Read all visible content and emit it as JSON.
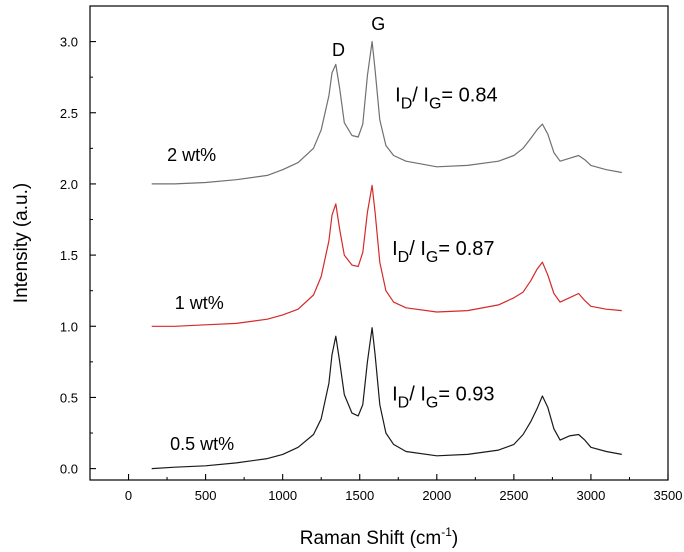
{
  "chart_data": {
    "type": "line",
    "title": "",
    "xlabel": "Raman Shift (cm",
    "xlabel_sup": "-1",
    "xlabel_close": ")",
    "ylabel": "Intensity (a.u.)",
    "xlim": [
      -250,
      3500
    ],
    "ylim": [
      -0.08,
      3.25
    ],
    "x_ticks": [
      0,
      500,
      1000,
      1500,
      2000,
      2500,
      3000,
      3500
    ],
    "x_tick_labels": [
      "0",
      "500",
      "1000",
      "1500",
      "2000",
      "2500",
      "3000",
      "3500"
    ],
    "y_ticks": [
      0.0,
      0.5,
      1.0,
      1.5,
      2.0,
      2.5,
      3.0
    ],
    "y_tick_labels": [
      "0.0",
      "0.5",
      "1.0",
      "1.5",
      "2.0",
      "2.5",
      "3.0"
    ],
    "grid": false,
    "series": [
      {
        "name": "0.5 wt%",
        "color": "#1a1a1a",
        "x": [
          150,
          300,
          500,
          700,
          900,
          1000,
          1100,
          1200,
          1250,
          1300,
          1320,
          1345,
          1370,
          1400,
          1450,
          1490,
          1520,
          1550,
          1580,
          1600,
          1630,
          1670,
          1720,
          1800,
          2000,
          2200,
          2400,
          2500,
          2560,
          2610,
          2650,
          2685,
          2720,
          2760,
          2800,
          2860,
          2920,
          2960,
          3000,
          3100,
          3200
        ],
        "y": [
          0.0,
          0.01,
          0.02,
          0.04,
          0.07,
          0.1,
          0.15,
          0.24,
          0.35,
          0.6,
          0.8,
          0.93,
          0.75,
          0.52,
          0.39,
          0.37,
          0.45,
          0.75,
          0.99,
          0.8,
          0.45,
          0.25,
          0.17,
          0.12,
          0.09,
          0.1,
          0.13,
          0.17,
          0.24,
          0.33,
          0.42,
          0.51,
          0.43,
          0.28,
          0.2,
          0.23,
          0.24,
          0.2,
          0.15,
          0.12,
          0.1
        ]
      },
      {
        "name": "1 wt%",
        "color": "#d42a2a",
        "x": [
          150,
          300,
          500,
          700,
          900,
          1000,
          1100,
          1200,
          1250,
          1300,
          1320,
          1345,
          1370,
          1400,
          1450,
          1490,
          1520,
          1550,
          1580,
          1600,
          1630,
          1670,
          1720,
          1800,
          2000,
          2200,
          2400,
          2500,
          2560,
          2610,
          2650,
          2685,
          2720,
          2760,
          2800,
          2860,
          2920,
          2960,
          3000,
          3100,
          3200
        ],
        "y": [
          1.0,
          1.0,
          1.01,
          1.02,
          1.05,
          1.08,
          1.12,
          1.22,
          1.35,
          1.6,
          1.78,
          1.86,
          1.68,
          1.5,
          1.43,
          1.42,
          1.52,
          1.8,
          1.99,
          1.8,
          1.45,
          1.25,
          1.17,
          1.13,
          1.1,
          1.11,
          1.15,
          1.2,
          1.24,
          1.32,
          1.4,
          1.45,
          1.36,
          1.23,
          1.17,
          1.2,
          1.23,
          1.18,
          1.14,
          1.12,
          1.11
        ]
      },
      {
        "name": "2 wt%",
        "color": "#707070",
        "x": [
          150,
          300,
          500,
          700,
          900,
          1000,
          1100,
          1200,
          1250,
          1300,
          1320,
          1345,
          1370,
          1400,
          1450,
          1490,
          1520,
          1550,
          1580,
          1600,
          1630,
          1670,
          1720,
          1800,
          2000,
          2200,
          2400,
          2500,
          2560,
          2610,
          2650,
          2685,
          2720,
          2760,
          2800,
          2860,
          2920,
          2960,
          3000,
          3100,
          3200
        ],
        "y": [
          2.0,
          2.0,
          2.01,
          2.03,
          2.06,
          2.1,
          2.15,
          2.25,
          2.38,
          2.62,
          2.78,
          2.84,
          2.67,
          2.43,
          2.34,
          2.33,
          2.42,
          2.76,
          3.0,
          2.8,
          2.45,
          2.27,
          2.2,
          2.16,
          2.12,
          2.13,
          2.16,
          2.2,
          2.25,
          2.32,
          2.38,
          2.42,
          2.35,
          2.22,
          2.16,
          2.18,
          2.2,
          2.17,
          2.13,
          2.1,
          2.08
        ]
      }
    ],
    "annotations": [
      {
        "text": "D",
        "x": 1320,
        "y": 2.9
      },
      {
        "text": "G",
        "x": 1575,
        "y": 3.08
      },
      {
        "text": "2 wt%",
        "x": 250,
        "y": 2.16
      },
      {
        "text": "1 wt%",
        "x": 300,
        "y": 1.12
      },
      {
        "text": "0.5 wt%",
        "x": 270,
        "y": 0.13
      }
    ],
    "ratios": [
      {
        "I": "I",
        "sub_D": "D",
        "slash": "/ ",
        "sub_G": "G",
        "value": "= 0.84",
        "x": 1730,
        "y": 2.58
      },
      {
        "I": "I",
        "sub_D": "D",
        "slash": "/ ",
        "sub_G": "G",
        "value": "= 0.87",
        "x": 1710,
        "y": 1.5
      },
      {
        "I": "I",
        "sub_D": "D",
        "slash": "/ ",
        "sub_G": "G",
        "value": "= 0.93",
        "x": 1710,
        "y": 0.48
      }
    ]
  }
}
